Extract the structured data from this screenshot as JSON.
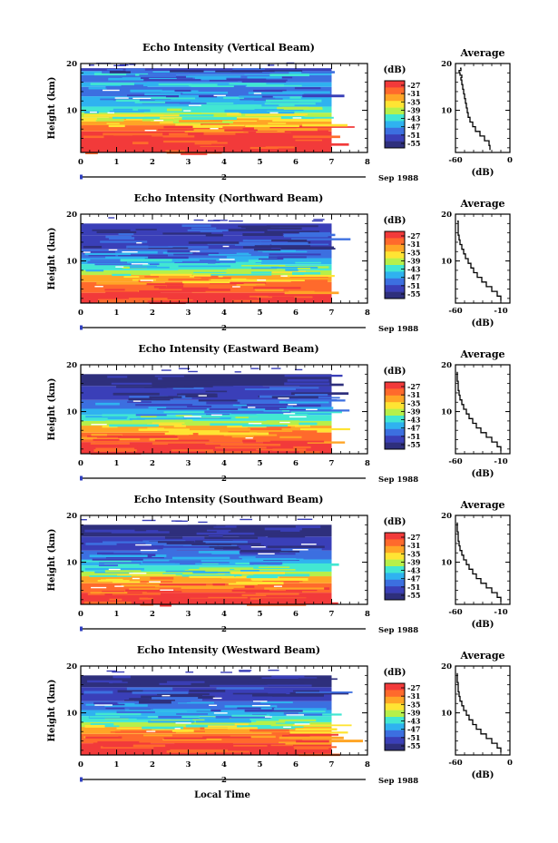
{
  "figure": {
    "footer_xlabel": "Local Time"
  },
  "colorbar": {
    "unit_label": "(dB)",
    "ticks": [
      "-27",
      "-31",
      "-35",
      "-39",
      "-43",
      "-47",
      "-51",
      "-55"
    ],
    "colors": [
      "#f23a3a",
      "#ff6a2c",
      "#ffa526",
      "#ffe433",
      "#b6f04a",
      "#42e7d2",
      "#2fb2f0",
      "#3c6fe0",
      "#3a3fb8",
      "#2e2f7c"
    ]
  },
  "chart_data": [
    {
      "type": "heatmap",
      "title": "Echo Intensity (Vertical Beam)",
      "ylabel": "Height (km)",
      "x_ticks": [
        "0",
        "1",
        "2",
        "3",
        "4",
        "5",
        "6",
        "7",
        "8"
      ],
      "y_ticks": [
        "20",
        "10"
      ],
      "xlim": [
        0,
        8
      ],
      "ylim": [
        1,
        20
      ],
      "data_end_x": 7.0,
      "date_marker": "2",
      "date_label": "Sep 1988",
      "colorbar_label": "(dB)",
      "profile": {
        "title": "Average",
        "xlabel": "(dB)",
        "x_ticks": [
          "-60",
          "0"
        ],
        "xlim": [
          -60,
          0
        ],
        "y_ticks": [
          "20",
          "10"
        ],
        "ylim": [
          1,
          20
        ],
        "x": [
          -22,
          -23,
          -28,
          -33,
          -38,
          -41,
          -44,
          -46,
          -47,
          -48,
          -49,
          -50,
          -51,
          -52,
          -53,
          -54,
          -53,
          -55,
          -56,
          -54,
          -55
        ],
        "y": [
          1.5,
          2.5,
          3.5,
          4.5,
          5.5,
          6.5,
          7.5,
          8.5,
          9.5,
          10.5,
          11.5,
          12.5,
          13.5,
          14.5,
          15.5,
          16.5,
          17,
          17.5,
          18,
          18.5,
          19
        ]
      },
      "bands": [
        {
          "from": 1,
          "to": 5.5,
          "level": 0
        },
        {
          "from": 5.5,
          "to": 6.8,
          "level": 1
        },
        {
          "from": 6.8,
          "to": 7.6,
          "level": 2
        },
        {
          "from": 7.6,
          "to": 8.5,
          "level": 3
        },
        {
          "from": 8.5,
          "to": 9.5,
          "level": 4
        },
        {
          "from": 9.5,
          "to": 10.8,
          "level": 5
        },
        {
          "from": 10.8,
          "to": 13,
          "level": 6
        },
        {
          "from": 13,
          "to": 15,
          "level": 7
        },
        {
          "from": 15,
          "to": 16,
          "level": 6
        },
        {
          "from": 16,
          "to": 17.5,
          "level": 7
        },
        {
          "from": 17.5,
          "to": 18.4,
          "level": 6
        },
        {
          "from": 18.4,
          "to": 19,
          "level": 8
        }
      ]
    },
    {
      "type": "heatmap",
      "title": "Echo Intensity (Northward Beam)",
      "ylabel": "Height (km)",
      "x_ticks": [
        "0",
        "1",
        "2",
        "3",
        "4",
        "5",
        "6",
        "7",
        "8"
      ],
      "y_ticks": [
        "20",
        "10"
      ],
      "xlim": [
        0,
        8
      ],
      "ylim": [
        1,
        20
      ],
      "data_end_x": 7.0,
      "date_marker": "2",
      "date_label": "Sep 1988",
      "colorbar_label": "(dB)",
      "profile": {
        "title": "Average",
        "xlabel": "(dB)",
        "x_ticks": [
          "-60",
          "-10"
        ],
        "xlim": [
          -60,
          0
        ],
        "y_ticks": [
          "20",
          "10"
        ],
        "ylim": [
          1,
          20
        ],
        "x": [
          -10,
          -14,
          -20,
          -26,
          -31,
          -36,
          -40,
          -43,
          -46,
          -49,
          -51,
          -53,
          -55,
          -56,
          -57,
          -57,
          -57,
          -58
        ],
        "y": [
          1.5,
          2.5,
          3.5,
          4.5,
          5.5,
          6.5,
          7.5,
          8.5,
          9.5,
          10.5,
          11.5,
          12.5,
          13.5,
          14.5,
          15.5,
          16.5,
          17.5,
          18.5
        ]
      },
      "bands": [
        {
          "from": 1,
          "to": 3.2,
          "level": 0
        },
        {
          "from": 3.2,
          "to": 5.5,
          "level": 1
        },
        {
          "from": 5.5,
          "to": 7,
          "level": 2
        },
        {
          "from": 7,
          "to": 8,
          "level": 4
        },
        {
          "from": 8,
          "to": 9.3,
          "level": 5
        },
        {
          "from": 9.3,
          "to": 10.6,
          "level": 6
        },
        {
          "from": 10.6,
          "to": 12.5,
          "level": 7
        },
        {
          "from": 12.5,
          "to": 15.5,
          "level": 8
        },
        {
          "from": 15.5,
          "to": 18,
          "level": 8
        }
      ]
    },
    {
      "type": "heatmap",
      "title": "Echo Intensity (Eastward Beam)",
      "ylabel": "Height (km)",
      "x_ticks": [
        "0",
        "1",
        "2",
        "3",
        "4",
        "5",
        "6",
        "7",
        "8"
      ],
      "y_ticks": [
        "20",
        "10"
      ],
      "xlim": [
        0,
        8
      ],
      "ylim": [
        1,
        20
      ],
      "data_end_x": 7.0,
      "date_marker": "2",
      "date_label": "Sep 1988",
      "colorbar_label": "(dB)",
      "profile": {
        "title": "Average",
        "xlabel": "(dB)",
        "x_ticks": [
          "-60",
          "-10"
        ],
        "xlim": [
          -60,
          0
        ],
        "y_ticks": [
          "20",
          "10"
        ],
        "ylim": [
          1,
          20
        ],
        "x": [
          -10,
          -14,
          -20,
          -26,
          -32,
          -37,
          -41,
          -45,
          -48,
          -51,
          -53,
          -55,
          -56,
          -57,
          -57,
          -58,
          -58,
          -58
        ],
        "y": [
          1.5,
          2.5,
          3.5,
          4.5,
          5.5,
          6.5,
          7.5,
          8.5,
          9.5,
          10.5,
          11.5,
          12.5,
          13.5,
          14.5,
          15.5,
          16.5,
          17.5,
          18.5
        ]
      },
      "bands": [
        {
          "from": 1,
          "to": 3.5,
          "level": 0
        },
        {
          "from": 3.5,
          "to": 5.5,
          "level": 1
        },
        {
          "from": 5.5,
          "to": 7,
          "level": 2
        },
        {
          "from": 7,
          "to": 8,
          "level": 4
        },
        {
          "from": 8,
          "to": 9.3,
          "level": 5
        },
        {
          "from": 9.3,
          "to": 10.6,
          "level": 6
        },
        {
          "from": 10.6,
          "to": 12.5,
          "level": 7
        },
        {
          "from": 12.5,
          "to": 15.5,
          "level": 8
        },
        {
          "from": 15.5,
          "to": 18,
          "level": 9
        }
      ]
    },
    {
      "type": "heatmap",
      "title": "Echo Intensity (Southward Beam)",
      "ylabel": "Height (km)",
      "x_ticks": [
        "0",
        "1",
        "2",
        "3",
        "4",
        "5",
        "6",
        "7",
        "8"
      ],
      "y_ticks": [
        "20",
        "10"
      ],
      "xlim": [
        0,
        8
      ],
      "ylim": [
        1,
        20
      ],
      "data_end_x": 7.0,
      "date_marker": "2",
      "date_label": "Sep 1988",
      "colorbar_label": "(dB)",
      "profile": {
        "title": "Average",
        "xlabel": "(dB)",
        "x_ticks": [
          "-60",
          "-10"
        ],
        "xlim": [
          -60,
          0
        ],
        "y_ticks": [
          "20",
          "10"
        ],
        "ylim": [
          1,
          20
        ],
        "x": [
          -10,
          -14,
          -20,
          -26,
          -32,
          -37,
          -41,
          -45,
          -48,
          -51,
          -53,
          -55,
          -56,
          -57,
          -57,
          -58,
          -58,
          -58
        ],
        "y": [
          1.5,
          2.5,
          3.5,
          4.5,
          5.5,
          6.5,
          7.5,
          8.5,
          9.5,
          10.5,
          11.5,
          12.5,
          13.5,
          14.5,
          15.5,
          16.5,
          17.5,
          18.5
        ]
      },
      "bands": [
        {
          "from": 1,
          "to": 3.5,
          "level": 0
        },
        {
          "from": 3.5,
          "to": 5.5,
          "level": 1
        },
        {
          "from": 5.5,
          "to": 7,
          "level": 2
        },
        {
          "from": 7,
          "to": 8,
          "level": 4
        },
        {
          "from": 8,
          "to": 9.3,
          "level": 5
        },
        {
          "from": 9.3,
          "to": 10.6,
          "level": 6
        },
        {
          "from": 10.6,
          "to": 12.5,
          "level": 7
        },
        {
          "from": 12.5,
          "to": 15.5,
          "level": 8
        },
        {
          "from": 15.5,
          "to": 18,
          "level": 9
        }
      ]
    },
    {
      "type": "heatmap",
      "title": "Echo Intensity (Westward Beam)",
      "ylabel": "Height (km)",
      "x_ticks": [
        "0",
        "1",
        "2",
        "3",
        "4",
        "5",
        "6",
        "7",
        "8"
      ],
      "y_ticks": [
        "20",
        "10"
      ],
      "xlim": [
        0,
        8
      ],
      "ylim": [
        1,
        20
      ],
      "data_end_x": 7.0,
      "date_marker": "2",
      "date_label": "Sep 1988",
      "colorbar_label": "(dB)",
      "profile": {
        "title": "Average",
        "xlabel": "(dB)",
        "x_ticks": [
          "-60",
          "0"
        ],
        "xlim": [
          -60,
          0
        ],
        "y_ticks": [
          "20",
          "10"
        ],
        "ylim": [
          1,
          20
        ],
        "x": [
          -10,
          -14,
          -20,
          -26,
          -32,
          -37,
          -41,
          -45,
          -48,
          -51,
          -53,
          -55,
          -56,
          -57,
          -57,
          -58,
          -58,
          -58
        ],
        "y": [
          1.5,
          2.5,
          3.5,
          4.5,
          5.5,
          6.5,
          7.5,
          8.5,
          9.5,
          10.5,
          11.5,
          12.5,
          13.5,
          14.5,
          15.5,
          16.5,
          17.5,
          18.5
        ]
      },
      "bands": [
        {
          "from": 1,
          "to": 3.5,
          "level": 0
        },
        {
          "from": 3.5,
          "to": 5.5,
          "level": 1
        },
        {
          "from": 5.5,
          "to": 7,
          "level": 2
        },
        {
          "from": 7,
          "to": 8,
          "level": 4
        },
        {
          "from": 8,
          "to": 9.3,
          "level": 5
        },
        {
          "from": 9.3,
          "to": 10.6,
          "level": 6
        },
        {
          "from": 10.6,
          "to": 12.5,
          "level": 7
        },
        {
          "from": 12.5,
          "to": 15.5,
          "level": 8
        },
        {
          "from": 15.5,
          "to": 18,
          "level": 9
        }
      ]
    }
  ]
}
